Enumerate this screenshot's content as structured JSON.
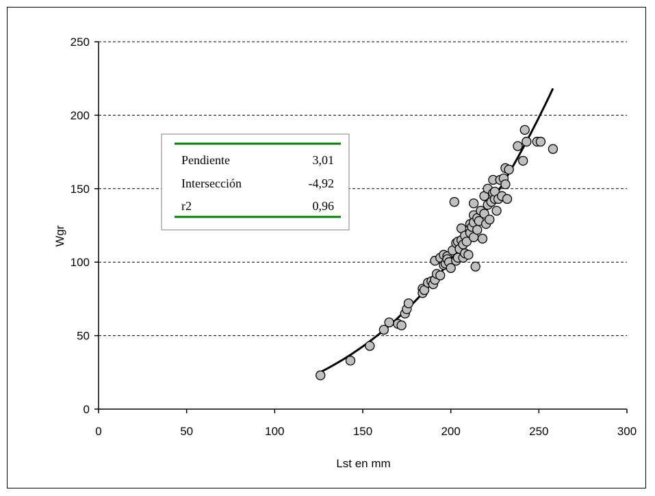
{
  "chart_data": {
    "type": "scatter",
    "xlabel": "Lst en mm",
    "ylabel": "Wgr",
    "xlim": [
      0,
      300
    ],
    "ylim": [
      0,
      250
    ],
    "xticks": [
      0,
      50,
      100,
      150,
      200,
      250,
      300
    ],
    "yticks": [
      0,
      50,
      100,
      150,
      200,
      250
    ],
    "grid": "horizontal-dashed",
    "marker_color": "#c0c0c0",
    "stats_line_color": "#008000",
    "stats": [
      {
        "label": "Pendiente",
        "value": "3,01"
      },
      {
        "label": "Intersección",
        "value": "-4,92"
      },
      {
        "label": "r2",
        "value": "0,96"
      }
    ],
    "points": [
      [
        126,
        23
      ],
      [
        143,
        33
      ],
      [
        154,
        43
      ],
      [
        162,
        54
      ],
      [
        165,
        59
      ],
      [
        170,
        58
      ],
      [
        172,
        57
      ],
      [
        174,
        65
      ],
      [
        175,
        68
      ],
      [
        176,
        72
      ],
      [
        184,
        82
      ],
      [
        184,
        79
      ],
      [
        185,
        81
      ],
      [
        187,
        86
      ],
      [
        189,
        87
      ],
      [
        190,
        85
      ],
      [
        191,
        101
      ],
      [
        191,
        88
      ],
      [
        192,
        92
      ],
      [
        194,
        91
      ],
      [
        194,
        103
      ],
      [
        196,
        98
      ],
      [
        196,
        105
      ],
      [
        197,
        99
      ],
      [
        198,
        104
      ],
      [
        198,
        102
      ],
      [
        199,
        100
      ],
      [
        200,
        96
      ],
      [
        201,
        108
      ],
      [
        202,
        141
      ],
      [
        203,
        101
      ],
      [
        203,
        113
      ],
      [
        204,
        103
      ],
      [
        204,
        114
      ],
      [
        205,
        109
      ],
      [
        206,
        115
      ],
      [
        206,
        123
      ],
      [
        207,
        103
      ],
      [
        207,
        112
      ],
      [
        208,
        106
      ],
      [
        208,
        118
      ],
      [
        209,
        114
      ],
      [
        210,
        105
      ],
      [
        211,
        120
      ],
      [
        211,
        126
      ],
      [
        212,
        124
      ],
      [
        213,
        140
      ],
      [
        213,
        132
      ],
      [
        213,
        117
      ],
      [
        213,
        127
      ],
      [
        214,
        97
      ],
      [
        215,
        130
      ],
      [
        215,
        122
      ],
      [
        216,
        128
      ],
      [
        217,
        135
      ],
      [
        218,
        116
      ],
      [
        219,
        145
      ],
      [
        219,
        133
      ],
      [
        220,
        126
      ],
      [
        221,
        150
      ],
      [
        221,
        139
      ],
      [
        222,
        129
      ],
      [
        223,
        141
      ],
      [
        224,
        147
      ],
      [
        224,
        156
      ],
      [
        225,
        143
      ],
      [
        225,
        148
      ],
      [
        226,
        135
      ],
      [
        227,
        143
      ],
      [
        228,
        156
      ],
      [
        229,
        145
      ],
      [
        230,
        157
      ],
      [
        231,
        164
      ],
      [
        231,
        153
      ],
      [
        232,
        143
      ],
      [
        233,
        163
      ],
      [
        238,
        179
      ],
      [
        241,
        169
      ],
      [
        242,
        190
      ],
      [
        243,
        182
      ],
      [
        249,
        182
      ],
      [
        251,
        182
      ],
      [
        258,
        177
      ]
    ],
    "trend": {
      "x_start": 126,
      "x_end": 258
    }
  }
}
